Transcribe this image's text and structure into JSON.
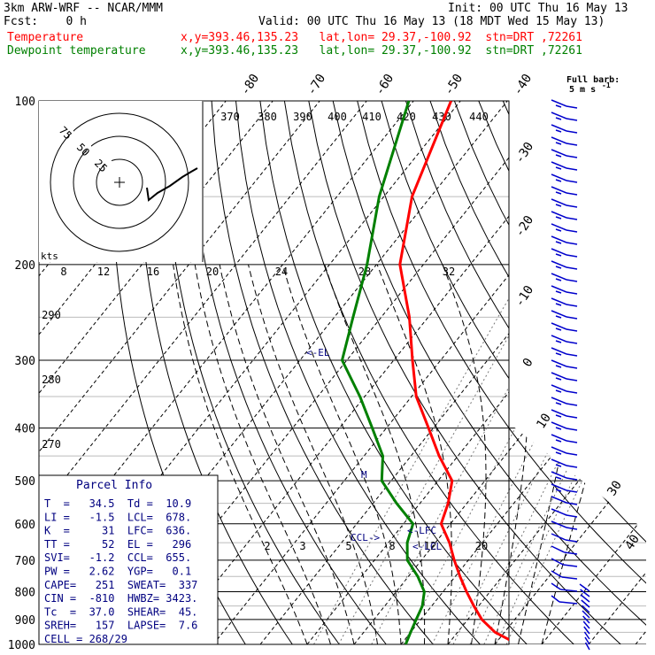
{
  "header": {
    "model": "3km ARW-WRF -- NCAR/MMM",
    "init": "Init: 00 UTC Thu 16 May 13",
    "fcst": "Fcst:    0 h",
    "valid": "Valid: 00 UTC Thu 16 May 13 (18 MDT Wed 15 May 13)",
    "temp_label": "Temperature",
    "temp_loc": "x,y=393.46,135.23   lat,lon= 29.37,-100.92  stn=DRT ,72261",
    "dew_label": "Dewpoint temperature",
    "dew_loc": "x,y=393.46,135.23   lat,lon= 29.37,-100.92  stn=DRT ,72261",
    "full_barb_line1": "Full barb:",
    "full_barb_line2": "5 m s",
    "full_barb_exp": "-1"
  },
  "colors": {
    "temperature": "#ff0000",
    "dewpoint": "#008000",
    "header_red": "#ff0000",
    "header_green": "#008000",
    "barbs": "#0000cc",
    "annotations": "#000080"
  },
  "parcel": {
    "title": "Parcel Info",
    "rows": [
      "T  =   34.5  Td =  10.9",
      "LI =   -1.5  LCL=  678.",
      "K  =     31  LFC=  636.",
      "TT =     52  EL =   296",
      "SVI=   -1.2  CCL=  655.",
      "PW =   2.62  YGP=   0.1",
      "CAPE=   251  SWEAT=  337",
      "CIN =  -810  HWBZ= 3423.",
      "Tc  =  37.0  SHEAR=  45.",
      "SREH=   157  LAPSE=  7.6",
      "CELL = 268/29"
    ]
  },
  "annotations": {
    "el": "<-EL",
    "ccl": "CCL->",
    "lfc": "<-LFC",
    "lcl": "<-LCL",
    "m": "M"
  },
  "hodograph": {
    "units": "kts",
    "ring_labels": [
      "25",
      "50",
      "75"
    ]
  },
  "chart_data": {
    "type": "line",
    "pressure_levels": [
      "100",
      "200",
      "300",
      "400",
      "500",
      "600",
      "700",
      "800",
      "900",
      "1000"
    ],
    "isotherm_labels": [
      "-80",
      "-70",
      "-60",
      "-50",
      "-40",
      "-30",
      "-20",
      "-10",
      "0",
      "10",
      "30",
      "40"
    ],
    "theta_labels": [
      "370",
      "380",
      "390",
      "400",
      "410",
      "420",
      "430",
      "440"
    ],
    "theta_left_labels": [
      "290",
      "280",
      "270"
    ],
    "mixing_ratio_top": [
      "8",
      "12",
      "16",
      "20",
      "24",
      "28",
      "32"
    ],
    "mixing_ratio_bottom": [
      "2",
      "3",
      "5",
      "8",
      "12",
      "20"
    ],
    "series": [
      {
        "name": "Temperature",
        "pressure": [
          1000,
          950,
          900,
          850,
          800,
          750,
          700,
          650,
          600,
          550,
          500,
          450,
          400,
          350,
          300,
          250,
          200,
          150,
          100
        ],
        "values": [
          35,
          28,
          23,
          19,
          15,
          11,
          7,
          3,
          -2,
          -4,
          -7,
          -14,
          -21,
          -29,
          -36,
          -44,
          -55,
          -64,
          -72
        ]
      },
      {
        "name": "Dewpoint temperature",
        "pressure": [
          1000,
          950,
          900,
          850,
          800,
          750,
          700,
          650,
          600,
          550,
          500,
          450,
          400,
          350,
          300,
          250,
          200,
          150,
          100
        ],
        "values": [
          11,
          10,
          9,
          8,
          6,
          2,
          -3,
          -6,
          -8,
          -15,
          -22,
          -26,
          -33,
          -41,
          -51,
          -56,
          -62,
          -71,
          -81
        ]
      }
    ]
  }
}
